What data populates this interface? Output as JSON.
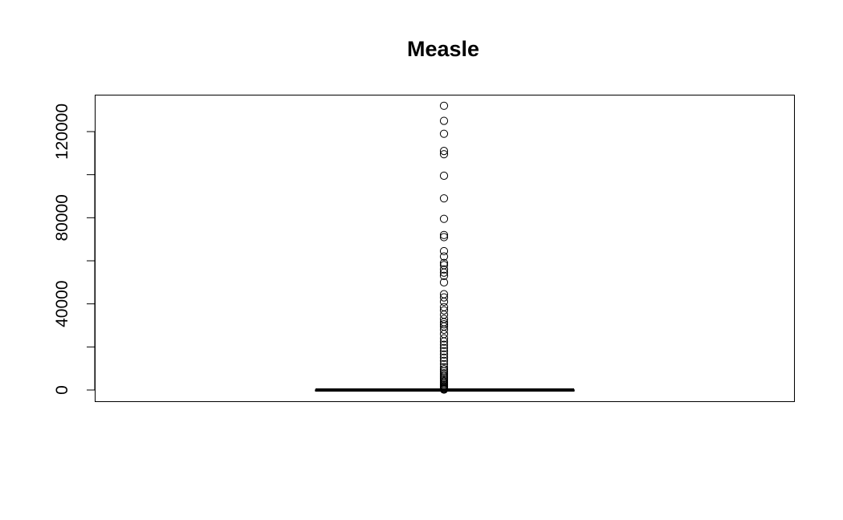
{
  "chart_data": {
    "type": "box",
    "title": "Measle",
    "xlabel": "",
    "ylabel": "",
    "ylim": [
      -5000,
      137000
    ],
    "yticks": [
      0,
      40000,
      80000,
      120000
    ],
    "ytick_labels": [
      "0",
      "40000",
      "80000",
      "120000"
    ],
    "grid": false,
    "box": {
      "median": 0,
      "q1": 0,
      "q3": 0,
      "whisker_low": 0,
      "whisker_high": 0
    },
    "outliers": [
      200,
      500,
      900,
      1300,
      1800,
      2300,
      2900,
      3500,
      4100,
      4800,
      5500,
      6200,
      7000,
      7800,
      8700,
      9600,
      10600,
      12000,
      13500,
      15000,
      16500,
      18000,
      19500,
      21000,
      22500,
      24000,
      26000,
      28000,
      29500,
      30500,
      31500,
      33000,
      35000,
      37000,
      38500,
      41000,
      43000,
      44500,
      50000,
      53000,
      54500,
      56000,
      58000,
      59000,
      62000,
      64500,
      71000,
      72000,
      79500,
      89000,
      99500,
      109500,
      111000,
      119000,
      125000,
      132000
    ]
  }
}
